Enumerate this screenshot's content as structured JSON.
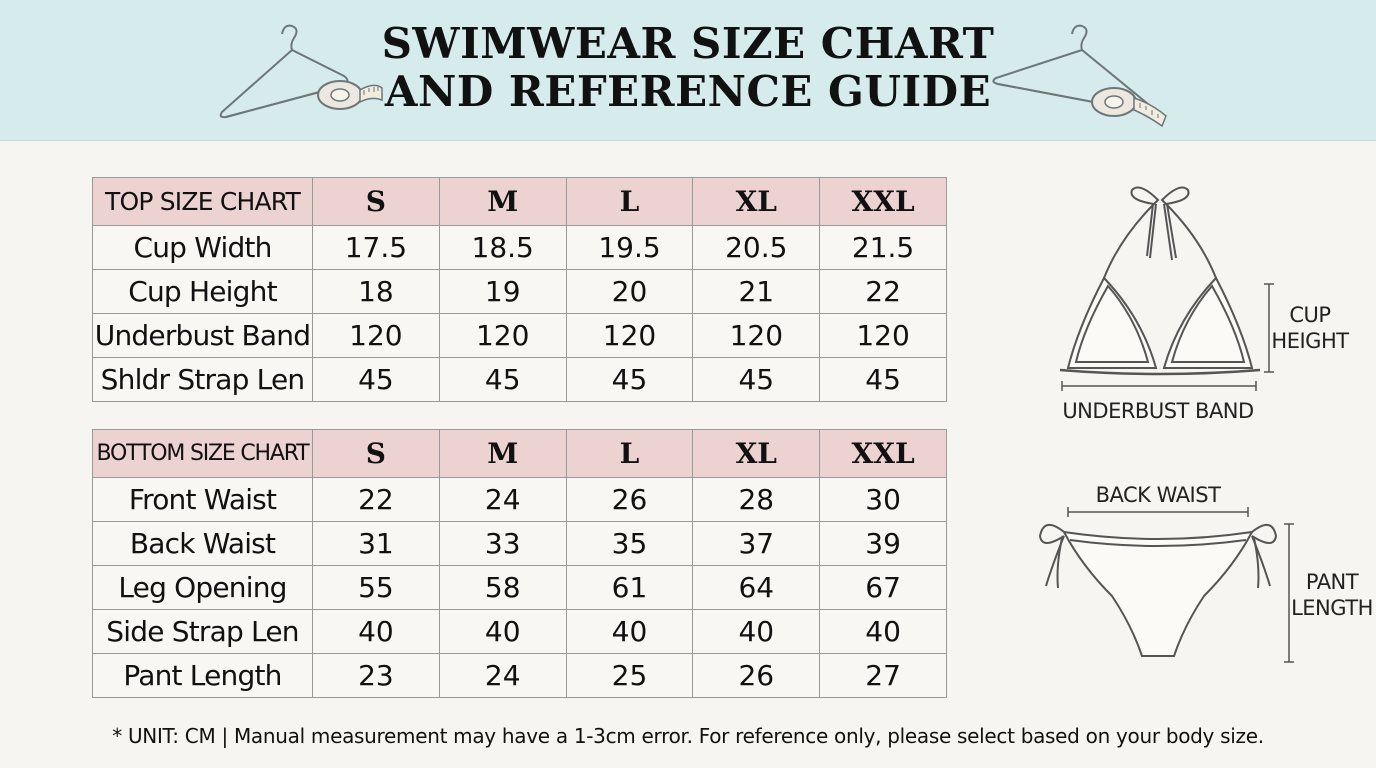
{
  "header": {
    "title_line1": "SWIMWEAR SIZE CHART",
    "title_line2": "AND REFERENCE GUIDE"
  },
  "top_table": {
    "label": "TOP SIZE CHART",
    "sizes": [
      "S",
      "M",
      "L",
      "XL",
      "XXL"
    ],
    "rows": [
      {
        "name": "Cup Width",
        "values": [
          "17.5",
          "18.5",
          "19.5",
          "20.5",
          "21.5"
        ]
      },
      {
        "name": "Cup Height",
        "values": [
          "18",
          "19",
          "20",
          "21",
          "22"
        ]
      },
      {
        "name": "Underbust Band",
        "values": [
          "120",
          "120",
          "120",
          "120",
          "120"
        ]
      },
      {
        "name": "Shldr Strap Len",
        "values": [
          "45",
          "45",
          "45",
          "45",
          "45"
        ]
      }
    ]
  },
  "bottom_table": {
    "label": "BOTTOM SIZE CHART",
    "sizes": [
      "S",
      "M",
      "L",
      "XL",
      "XXL"
    ],
    "rows": [
      {
        "name": "Front Waist",
        "values": [
          "22",
          "24",
          "26",
          "28",
          "30"
        ]
      },
      {
        "name": "Back Waist",
        "values": [
          "31",
          "33",
          "35",
          "37",
          "39"
        ]
      },
      {
        "name": "Leg Opening",
        "values": [
          "55",
          "58",
          "61",
          "64",
          "67"
        ]
      },
      {
        "name": "Side Strap Len",
        "values": [
          "40",
          "40",
          "40",
          "40",
          "40"
        ]
      },
      {
        "name": "Pant Length",
        "values": [
          "23",
          "24",
          "25",
          "26",
          "27"
        ]
      }
    ]
  },
  "diagrams": {
    "top_cup_height_line1": "CUP",
    "top_cup_height_line2": "HEIGHT",
    "top_underbust": "UNDERBUST BAND",
    "bottom_back_waist": "BACK WAIST",
    "bottom_pant_length_line1": "PANT",
    "bottom_pant_length_line2": "LENGTH"
  },
  "footnote": "* UNIT: CM | Manual measurement may have a 1-3cm error. For reference only, please select based on your body size.",
  "colors": {
    "header_bg": "#d6ebeb",
    "table_header_bg": "#ecd3d1",
    "page_bg": "#f6f5f1"
  },
  "icons": [
    "hanger-with-measuring-tape-icon",
    "bikini-top-icon",
    "bikini-bottom-icon"
  ]
}
